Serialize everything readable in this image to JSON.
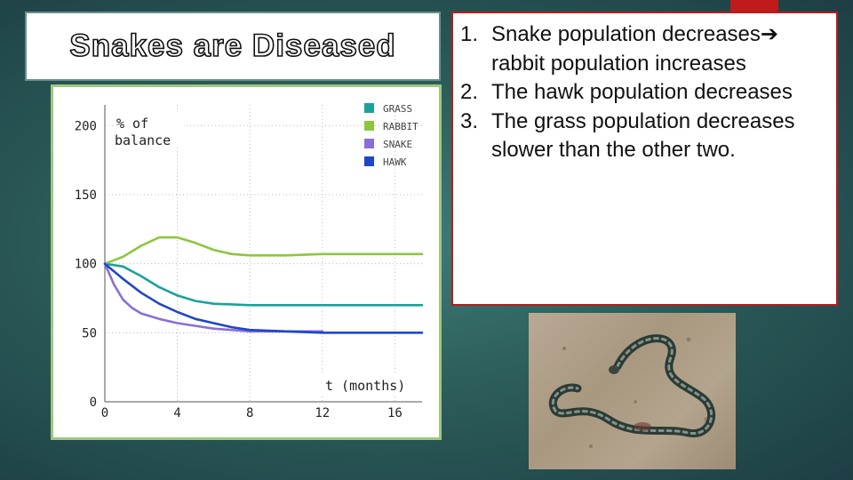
{
  "slide": {
    "title": "Snakes are Diseased",
    "points": [
      {
        "num": "1.",
        "text_before": "Snake population decreases",
        "arrow": "➔",
        "text_after": " rabbit population increases"
      },
      {
        "num": "2.",
        "text": "The hawk population decreases"
      },
      {
        "num": "3.",
        "text": "The grass population decreases slower than the other two."
      }
    ],
    "colors": {
      "accent_red": "#c01b1b",
      "background": "#2f6461"
    }
  },
  "chart_data": {
    "type": "line",
    "xlabel": "t (months)",
    "ylabel": "% of balance",
    "xlim": [
      0,
      17.5
    ],
    "ylim": [
      0,
      215
    ],
    "x_ticks": [
      "0",
      "4",
      "8",
      "12",
      "16"
    ],
    "y_ticks": [
      "0",
      "50",
      "100",
      "150",
      "200"
    ],
    "legend_position": "top-right",
    "series": [
      {
        "name": "GRASS",
        "color": "#1aa39a",
        "x": [
          0,
          1,
          2,
          3,
          4,
          5,
          6,
          8,
          10,
          12,
          14,
          16,
          17.5
        ],
        "y": [
          100,
          98,
          91,
          83,
          77,
          73,
          71,
          70,
          70,
          70,
          70,
          70,
          70
        ]
      },
      {
        "name": "RABBIT",
        "color": "#8cc63f",
        "x": [
          0,
          1,
          2,
          3,
          4,
          5,
          6,
          7,
          8,
          10,
          12,
          14,
          16,
          17.5
        ],
        "y": [
          100,
          105,
          113,
          119,
          119,
          115,
          110,
          107,
          106,
          106,
          107,
          107,
          107,
          107
        ]
      },
      {
        "name": "SNAKE",
        "color": "#8a6fd6",
        "x": [
          0,
          0.5,
          1,
          1.5,
          2,
          3,
          4,
          5,
          6,
          7,
          8,
          10,
          12
        ],
        "y": [
          100,
          85,
          74,
          68,
          64,
          60,
          57,
          55,
          53,
          52,
          51,
          51,
          51
        ]
      },
      {
        "name": "HAWK",
        "color": "#1f46c9",
        "x": [
          0,
          1,
          2,
          3,
          4,
          5,
          6,
          7,
          8,
          10,
          12,
          14,
          16,
          17.5
        ],
        "y": [
          100,
          89,
          79,
          71,
          65,
          60,
          57,
          54,
          52,
          51,
          50,
          50,
          50,
          50
        ]
      }
    ]
  }
}
